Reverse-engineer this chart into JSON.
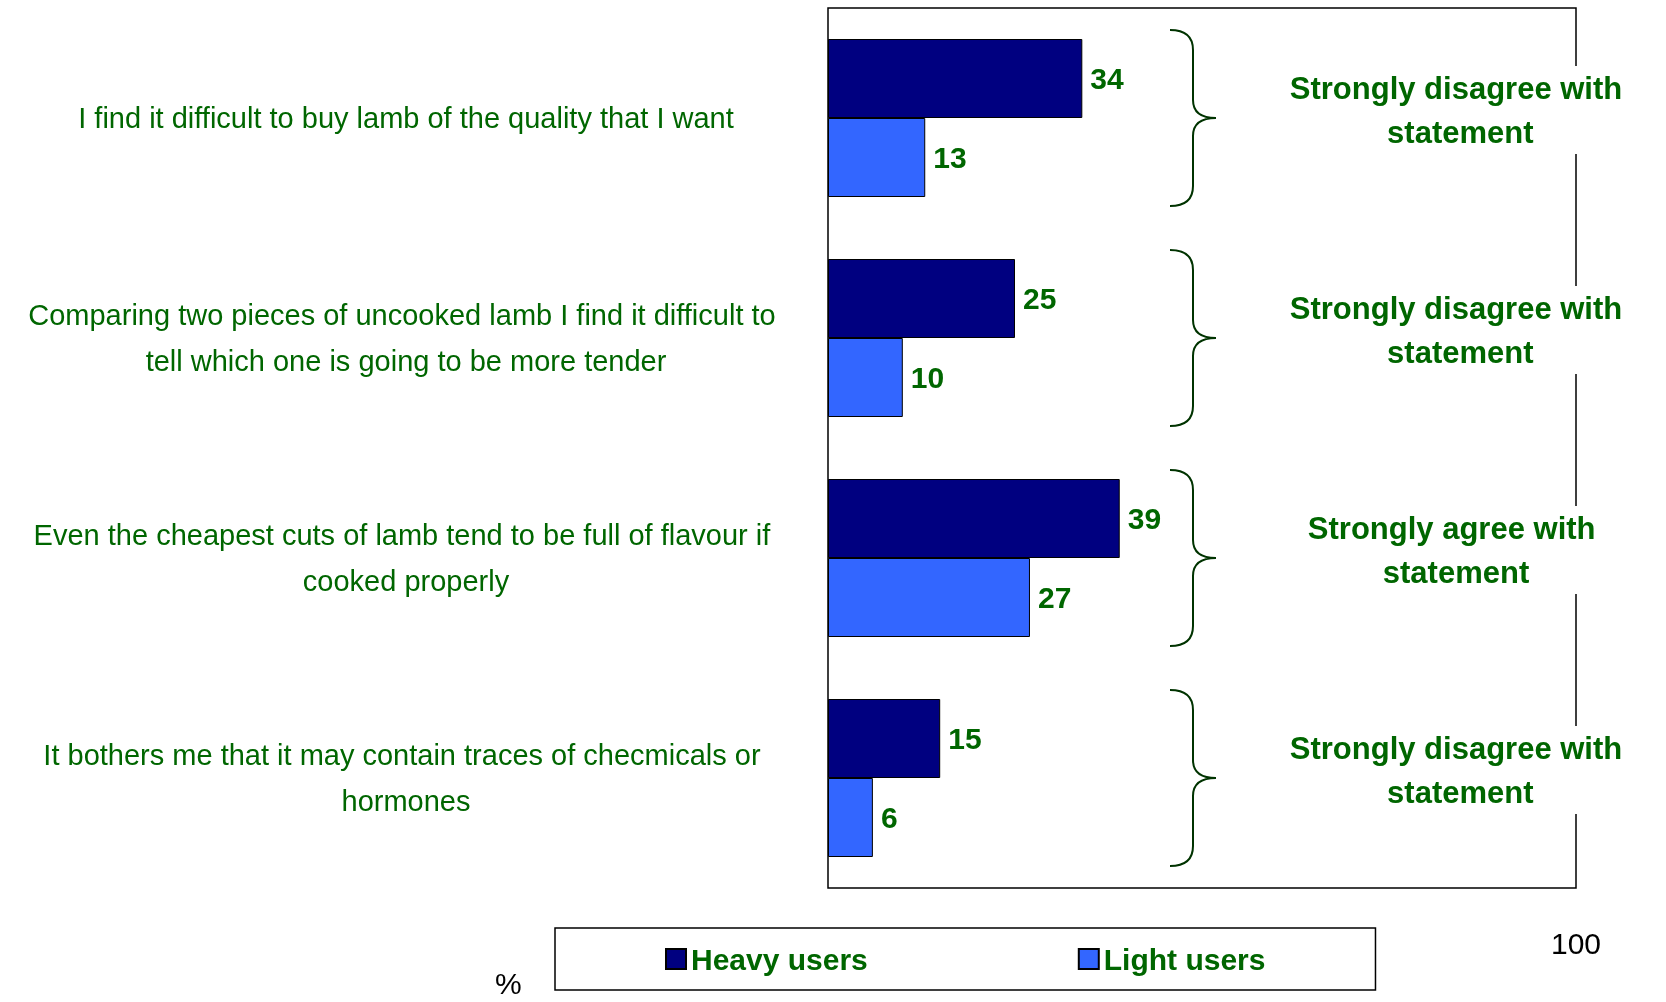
{
  "chart_data": {
    "type": "bar",
    "orientation": "horizontal",
    "xlabel": "%",
    "categories": [
      "I find it difficult to buy lamb of the quality that I want",
      "Comparing two pieces of uncooked lamb I find it difficult to tell which one is going to be more tender",
      "Even the cheapest cuts of lamb tend to be full of flavour if cooked properly",
      "It bothers me that it may contain traces of checmicals or hormones"
    ],
    "series": [
      {
        "name": "Heavy users",
        "color": "#000080",
        "values": [
          34,
          25,
          39,
          15
        ]
      },
      {
        "name": "Light users",
        "color": "#3366ff",
        "values": [
          13,
          10,
          27,
          6
        ]
      }
    ],
    "xlim": [
      0,
      100
    ],
    "xticks": [
      100
    ],
    "data_labels": true,
    "grid": false,
    "legend": "bottom",
    "annotations": [
      "Strongly disagree with statement",
      "Strongly disagree with statement",
      "Strongly agree with statement",
      "Strongly disagree with statement"
    ]
  }
}
